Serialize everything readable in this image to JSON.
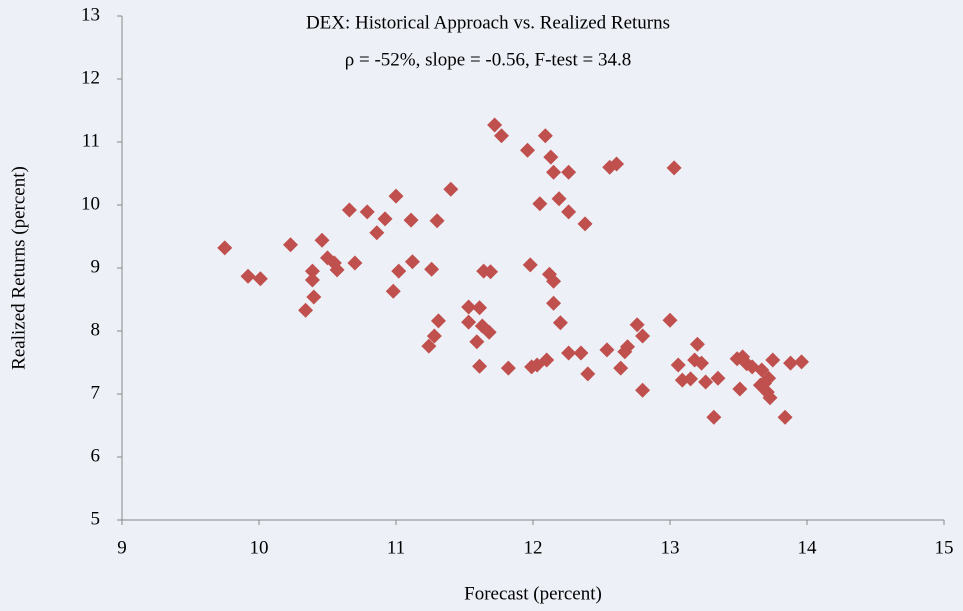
{
  "chart_data": {
    "type": "scatter",
    "title": "DEX: Historical Approach vs. Realized Returns",
    "subtitle": "ρ =  -52%, slope = -0.56, F-test = 34.8",
    "x_label": "Forecast (percent)",
    "y_label": "Realized Returns (percent)",
    "xlim": [
      9,
      15
    ],
    "ylim": [
      5,
      13
    ],
    "xticks": [
      9,
      10,
      11,
      12,
      13,
      14,
      15
    ],
    "yticks": [
      5,
      6,
      7,
      8,
      9,
      10,
      11,
      12,
      13
    ],
    "color": "#c0504d",
    "x": [
      9.75,
      9.92,
      10.01,
      10.23,
      10.34,
      10.39,
      10.39,
      10.4,
      10.46,
      10.5,
      10.55,
      10.57,
      10.7,
      10.66,
      10.79,
      10.86,
      10.92,
      10.98,
      11.0,
      11.02,
      11.11,
      11.12,
      11.26,
      11.3,
      11.28,
      11.31,
      11.4,
      11.24,
      11.53,
      11.53,
      11.59,
      11.61,
      11.61,
      11.63,
      11.68,
      11.64,
      11.69,
      11.72,
      11.77,
      11.82,
      11.96,
      11.98,
      11.99,
      12.03,
      12.05,
      12.09,
      12.1,
      12.12,
      12.13,
      12.15,
      12.15,
      12.15,
      12.19,
      12.2,
      12.26,
      12.26,
      12.26,
      12.35,
      12.38,
      12.4,
      12.54,
      12.56,
      12.61,
      12.64,
      12.67,
      12.69,
      12.76,
      12.8,
      12.8,
      13.0,
      13.03,
      13.06,
      13.09,
      13.15,
      13.18,
      13.2,
      13.23,
      13.26,
      13.32,
      13.35,
      13.49,
      13.51,
      13.53,
      13.56,
      13.6,
      13.66,
      13.69,
      13.72,
      13.73,
      13.71,
      13.75,
      13.84,
      13.88,
      13.96,
      13.67
    ],
    "y": [
      9.32,
      8.87,
      8.83,
      9.37,
      8.33,
      8.95,
      8.81,
      8.54,
      9.44,
      9.16,
      9.08,
      8.97,
      9.08,
      9.92,
      9.89,
      9.56,
      9.78,
      8.63,
      10.14,
      8.95,
      9.76,
      9.1,
      8.98,
      9.75,
      7.92,
      8.16,
      10.25,
      7.76,
      8.38,
      8.14,
      7.83,
      8.37,
      7.44,
      8.08,
      7.98,
      8.95,
      8.94,
      11.27,
      11.1,
      7.41,
      10.87,
      9.05,
      7.43,
      7.46,
      10.02,
      11.1,
      7.54,
      8.9,
      10.76,
      8.79,
      10.52,
      8.44,
      10.1,
      8.13,
      10.52,
      9.89,
      7.65,
      7.65,
      9.7,
      7.32,
      7.7,
      10.6,
      10.65,
      7.41,
      7.67,
      7.75,
      8.1,
      7.92,
      7.06,
      8.17,
      10.59,
      7.46,
      7.22,
      7.24,
      7.54,
      7.79,
      7.49,
      7.19,
      6.63,
      7.25,
      7.56,
      7.08,
      7.59,
      7.48,
      7.43,
      7.14,
      7.17,
      7.25,
      6.94,
      7.03,
      7.54,
      6.63,
      7.49,
      7.51,
      7.38
    ]
  }
}
